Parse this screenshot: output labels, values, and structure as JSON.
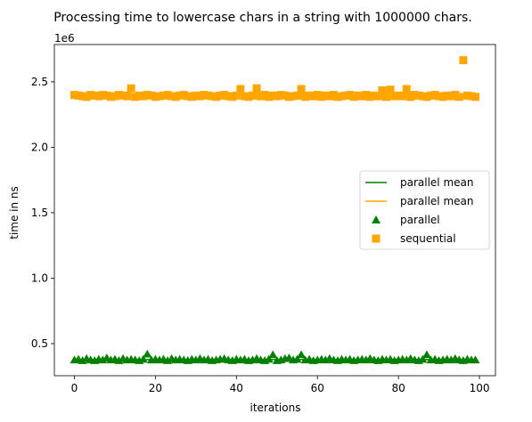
{
  "chart_data": {
    "type": "scatter",
    "title": "Processing time to lowercase chars in a string with 1000000 chars.",
    "xlabel": "iterations",
    "ylabel": "time in ns",
    "y_offset_label": "1e6",
    "xlim": [
      -4.95,
      103.95
    ],
    "ylim": [
      0.255,
      2.785
    ],
    "xticks": [
      0,
      20,
      40,
      60,
      80,
      100
    ],
    "yticks": [
      0.5,
      1.0,
      1.5,
      2.0,
      2.5
    ],
    "ytick_labels": [
      "0.5",
      "1.0",
      "1.5",
      "2.0",
      "2.5"
    ],
    "grid": false,
    "legend_position": "center-right",
    "series": [
      {
        "name": "parallel mean",
        "kind": "line",
        "color": "#008000",
        "y": 0.378,
        "x_range": [
          0,
          99
        ]
      },
      {
        "name": "parallel mean",
        "kind": "line",
        "color": "#FFA500",
        "y": 2.395,
        "x_range": [
          0,
          99
        ]
      },
      {
        "name": "parallel",
        "kind": "scatter",
        "marker": "triangle",
        "color": "#008000",
        "x": [
          0,
          1,
          2,
          3,
          4,
          5,
          6,
          7,
          8,
          9,
          10,
          11,
          12,
          13,
          14,
          15,
          16,
          17,
          18,
          19,
          20,
          21,
          22,
          23,
          24,
          25,
          26,
          27,
          28,
          29,
          30,
          31,
          32,
          33,
          34,
          35,
          36,
          37,
          38,
          39,
          40,
          41,
          42,
          43,
          44,
          45,
          46,
          47,
          48,
          49,
          50,
          51,
          52,
          53,
          54,
          55,
          56,
          57,
          58,
          59,
          60,
          61,
          62,
          63,
          64,
          65,
          66,
          67,
          68,
          69,
          70,
          71,
          72,
          73,
          74,
          75,
          76,
          77,
          78,
          79,
          80,
          81,
          82,
          83,
          84,
          85,
          86,
          87,
          88,
          89,
          90,
          91,
          92,
          93,
          94,
          95,
          96,
          97,
          98,
          99
        ],
        "y": [
          0.375,
          0.38,
          0.37,
          0.385,
          0.375,
          0.37,
          0.38,
          0.375,
          0.39,
          0.375,
          0.38,
          0.37,
          0.385,
          0.375,
          0.38,
          0.375,
          0.37,
          0.38,
          0.42,
          0.375,
          0.38,
          0.375,
          0.38,
          0.37,
          0.385,
          0.375,
          0.38,
          0.375,
          0.37,
          0.38,
          0.375,
          0.385,
          0.375,
          0.38,
          0.37,
          0.375,
          0.38,
          0.385,
          0.375,
          0.37,
          0.38,
          0.375,
          0.38,
          0.37,
          0.375,
          0.385,
          0.375,
          0.37,
          0.38,
          0.415,
          0.37,
          0.375,
          0.385,
          0.39,
          0.375,
          0.38,
          0.415,
          0.375,
          0.38,
          0.37,
          0.375,
          0.38,
          0.375,
          0.385,
          0.375,
          0.37,
          0.38,
          0.375,
          0.38,
          0.37,
          0.375,
          0.38,
          0.375,
          0.385,
          0.375,
          0.37,
          0.38,
          0.375,
          0.38,
          0.37,
          0.375,
          0.38,
          0.375,
          0.385,
          0.375,
          0.37,
          0.38,
          0.415,
          0.375,
          0.38,
          0.37,
          0.375,
          0.38,
          0.375,
          0.385,
          0.375,
          0.37,
          0.38,
          0.375,
          0.375
        ]
      },
      {
        "name": "sequential",
        "kind": "scatter",
        "marker": "square",
        "color": "#FFA500",
        "x": [
          0,
          1,
          2,
          3,
          4,
          5,
          6,
          7,
          8,
          9,
          10,
          11,
          12,
          13,
          14,
          15,
          16,
          17,
          18,
          19,
          20,
          21,
          22,
          23,
          24,
          25,
          26,
          27,
          28,
          29,
          30,
          31,
          32,
          33,
          34,
          35,
          36,
          37,
          38,
          39,
          40,
          41,
          42,
          43,
          44,
          45,
          46,
          47,
          48,
          49,
          50,
          51,
          52,
          53,
          54,
          55,
          56,
          57,
          58,
          59,
          60,
          61,
          62,
          63,
          64,
          65,
          66,
          67,
          68,
          69,
          70,
          71,
          72,
          73,
          74,
          75,
          76,
          77,
          78,
          79,
          80,
          81,
          82,
          83,
          84,
          85,
          86,
          87,
          88,
          89,
          90,
          91,
          92,
          93,
          94,
          95,
          96,
          97,
          98,
          99
        ],
        "y": [
          2.4,
          2.395,
          2.39,
          2.385,
          2.4,
          2.395,
          2.39,
          2.4,
          2.395,
          2.385,
          2.39,
          2.4,
          2.395,
          2.39,
          2.45,
          2.385,
          2.395,
          2.39,
          2.4,
          2.395,
          2.385,
          2.39,
          2.395,
          2.4,
          2.39,
          2.385,
          2.395,
          2.4,
          2.39,
          2.385,
          2.395,
          2.39,
          2.4,
          2.395,
          2.39,
          2.385,
          2.395,
          2.4,
          2.39,
          2.385,
          2.395,
          2.445,
          2.39,
          2.385,
          2.395,
          2.45,
          2.39,
          2.4,
          2.385,
          2.395,
          2.39,
          2.4,
          2.395,
          2.385,
          2.39,
          2.395,
          2.445,
          2.385,
          2.395,
          2.39,
          2.4,
          2.385,
          2.395,
          2.39,
          2.4,
          2.385,
          2.39,
          2.395,
          2.4,
          2.385,
          2.395,
          2.39,
          2.4,
          2.385,
          2.395,
          2.39,
          2.435,
          2.385,
          2.44,
          2.39,
          2.395,
          2.39,
          2.445,
          2.385,
          2.4,
          2.395,
          2.39,
          2.385,
          2.395,
          2.4,
          2.39,
          2.385,
          2.395,
          2.39,
          2.4,
          2.385,
          2.665,
          2.395,
          2.39,
          2.385
        ]
      }
    ]
  }
}
